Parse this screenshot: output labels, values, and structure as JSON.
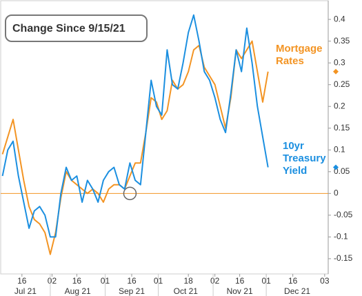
{
  "chart_data": {
    "type": "line",
    "title": "Change Since 9/15/21",
    "x": [
      "2021-07-05",
      "2021-07-08",
      "2021-07-11",
      "2021-07-14",
      "2021-07-17",
      "2021-07-20",
      "2021-07-23",
      "2021-07-26",
      "2021-07-29",
      "2021-08-01",
      "2021-08-04",
      "2021-08-07",
      "2021-08-10",
      "2021-08-13",
      "2021-08-16",
      "2021-08-19",
      "2021-08-22",
      "2021-08-25",
      "2021-08-28",
      "2021-08-31",
      "2021-09-03",
      "2021-09-06",
      "2021-09-09",
      "2021-09-12",
      "2021-09-15",
      "2021-09-18",
      "2021-09-21",
      "2021-09-24",
      "2021-09-27",
      "2021-09-30",
      "2021-10-03",
      "2021-10-06",
      "2021-10-09",
      "2021-10-12",
      "2021-10-15",
      "2021-10-18",
      "2021-10-21",
      "2021-10-24",
      "2021-10-27",
      "2021-10-30",
      "2021-11-02",
      "2021-11-05",
      "2021-11-08",
      "2021-11-11",
      "2021-11-14",
      "2021-11-17",
      "2021-11-20",
      "2021-11-23",
      "2021-11-26",
      "2021-11-29",
      "2021-12-02"
    ],
    "series": [
      {
        "name": "Mortgage Rates",
        "color": "#f39423",
        "values": [
          0.09,
          0.13,
          0.17,
          0.1,
          0.03,
          -0.03,
          -0.06,
          -0.07,
          -0.09,
          -0.14,
          -0.09,
          -0.01,
          0.05,
          0.03,
          0.02,
          0.01,
          0.0,
          0.01,
          0.0,
          -0.02,
          0.01,
          0.02,
          0.02,
          0.01,
          0.04,
          0.07,
          0.07,
          0.14,
          0.22,
          0.21,
          0.17,
          0.19,
          0.26,
          0.24,
          0.25,
          0.28,
          0.33,
          0.34,
          0.29,
          0.27,
          0.25,
          0.2,
          0.15,
          0.22,
          0.33,
          0.31,
          0.33,
          0.35,
          0.28,
          0.21,
          0.28
        ]
      },
      {
        "name": "10yr Treasury Yield",
        "color": "#1b8fe0",
        "values": [
          0.04,
          0.1,
          0.12,
          0.04,
          -0.02,
          -0.08,
          -0.04,
          -0.03,
          -0.05,
          -0.1,
          -0.1,
          0.0,
          0.06,
          0.03,
          0.04,
          -0.02,
          0.03,
          0.01,
          -0.02,
          0.03,
          0.05,
          0.06,
          0.02,
          0.01,
          0.07,
          0.03,
          0.02,
          0.14,
          0.26,
          0.2,
          0.18,
          0.33,
          0.25,
          0.24,
          0.3,
          0.37,
          0.41,
          0.35,
          0.28,
          0.26,
          0.22,
          0.17,
          0.14,
          0.23,
          0.33,
          0.28,
          0.38,
          0.3,
          0.2,
          0.13,
          0.06
        ]
      }
    ],
    "xlim": [
      "2021-07-04",
      "2022-01-05"
    ],
    "xticks": [
      {
        "value": "2021-07-16",
        "label": "16"
      },
      {
        "value": "2021-08-02",
        "label": "02"
      },
      {
        "value": "2021-08-16",
        "label": "16"
      },
      {
        "value": "2021-09-01",
        "label": "01"
      },
      {
        "value": "2021-09-16",
        "label": "16"
      },
      {
        "value": "2021-10-01",
        "label": "01"
      },
      {
        "value": "2021-10-18",
        "label": "18"
      },
      {
        "value": "2021-11-02",
        "label": "02"
      },
      {
        "value": "2021-11-16",
        "label": "16"
      },
      {
        "value": "2021-12-01",
        "label": "01"
      },
      {
        "value": "2021-12-16",
        "label": "16"
      },
      {
        "value": "2022-01-03",
        "label": "03"
      }
    ],
    "month_labels": [
      {
        "value": "2021-07-01",
        "label": "Jul 21"
      },
      {
        "value": "2021-08-01",
        "label": "Aug 21"
      },
      {
        "value": "2021-09-01",
        "label": "Sep 21"
      },
      {
        "value": "2021-10-01",
        "label": "Oct 21"
      },
      {
        "value": "2021-11-01",
        "label": "Nov 21"
      },
      {
        "value": "2021-12-01",
        "label": "Dec 21"
      }
    ],
    "ylim": [
      -0.185,
      0.443
    ],
    "yticks": [
      -0.15,
      -0.1,
      -0.05,
      0,
      0.05,
      0.1,
      0.15,
      0.2,
      0.25,
      0.3,
      0.35,
      0.4
    ],
    "zero_line": true
  }
}
